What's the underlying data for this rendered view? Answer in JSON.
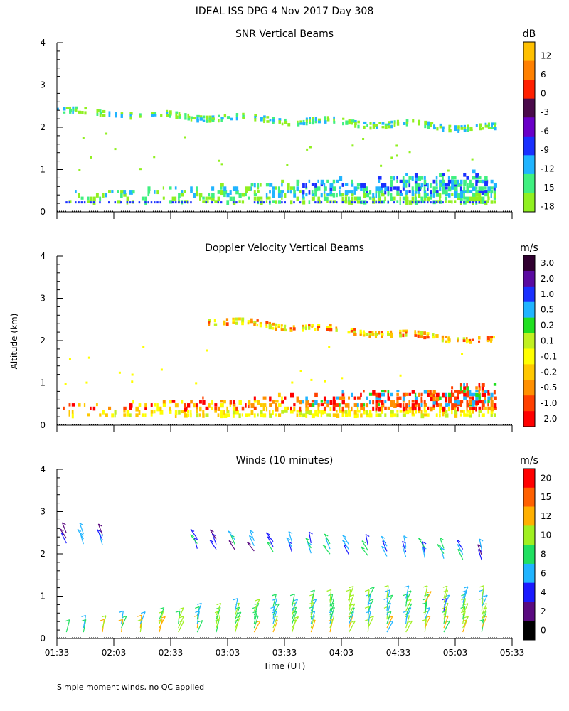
{
  "figure_title": "IDEAL ISS DPG   4 Nov 2017 Day 308",
  "y_axis_label": "Altitude (km)",
  "x_axis_label": "Time (UT)",
  "footnote": "Simple moment winds, no QC applied",
  "chart_data": [
    {
      "type": "heatmap",
      "title": "SNR Vertical Beams",
      "xlabel": "Time (UT)",
      "ylabel": "Altitude (km)",
      "x_ticks": [
        "01:33",
        "02:03",
        "02:33",
        "03:03",
        "03:33",
        "04:03",
        "04:33",
        "05:03",
        "05:33"
      ],
      "y_ticks": [
        "0",
        "1",
        "2",
        "3",
        "4"
      ],
      "xlim_minutes_after_0133": [
        0,
        240
      ],
      "ylim_km": [
        0,
        4
      ],
      "colorbar_unit": "dB",
      "colorbar_labels": [
        "12",
        "6",
        "0",
        "-3",
        "-6",
        "-9",
        "-12",
        "-15",
        "-18"
      ],
      "colorbar_colors": [
        "#ffc000",
        "#ff8000",
        "#ff2000",
        "#4a0a4a",
        "#6a00c8",
        "#1a30ff",
        "#20b4ff",
        "#40f080",
        "#90f020"
      ],
      "features": [
        {
          "name": "low-level layer",
          "alt_km": [
            0.2,
            0.9
          ],
          "time_min": [
            3,
            231
          ],
          "snr_db": [
            -18,
            -9
          ]
        },
        {
          "name": "elevated layer",
          "alt_km_start": 2.4,
          "alt_km_end": 2.0,
          "time_min": [
            0,
            231
          ],
          "snr_db": [
            -18,
            -15
          ]
        }
      ]
    },
    {
      "type": "heatmap",
      "title": "Doppler Velocity Vertical Beams",
      "xlabel": "Time (UT)",
      "ylabel": "Altitude (km)",
      "x_ticks": [
        "01:33",
        "02:03",
        "02:33",
        "03:03",
        "03:33",
        "04:03",
        "04:33",
        "05:03",
        "05:33"
      ],
      "y_ticks": [
        "0",
        "1",
        "2",
        "3",
        "4"
      ],
      "xlim_minutes_after_0133": [
        0,
        240
      ],
      "ylim_km": [
        0,
        4
      ],
      "colorbar_unit": "m/s",
      "colorbar_labels": [
        "3.0",
        "2.0",
        "1.0",
        "0.5",
        "0.2",
        "0.1",
        "-0.1",
        "-0.2",
        "-0.5",
        "-1.0",
        "-2.0"
      ],
      "colorbar_colors": [
        "#300030",
        "#5a0aa0",
        "#1a30ff",
        "#20b4ff",
        "#20e020",
        "#c0f020",
        "#ffff00",
        "#ffc800",
        "#ff9000",
        "#ff4000",
        "#ff0000"
      ],
      "features": [
        {
          "name": "low-level layer",
          "alt_km": [
            0.2,
            0.9
          ],
          "time_min": [
            3,
            231
          ],
          "velocity_ms": [
            -2.0,
            0.5
          ]
        },
        {
          "name": "elevated layer",
          "alt_km_start": 2.5,
          "alt_km_end": 2.0,
          "time_min": [
            78,
            231
          ],
          "velocity_ms": [
            -0.5,
            0.1
          ]
        }
      ]
    },
    {
      "type": "wind_barbs",
      "title": "Winds (10 minutes)",
      "xlabel": "Time (UT)",
      "ylabel": "Altitude (km)",
      "x_ticks": [
        "01:33",
        "02:03",
        "02:33",
        "03:03",
        "03:33",
        "04:03",
        "04:33",
        "05:03",
        "05:33"
      ],
      "y_ticks": [
        "0",
        "1",
        "2",
        "3",
        "4"
      ],
      "xlim_minutes_after_0133": [
        0,
        240
      ],
      "ylim_km": [
        0,
        4
      ],
      "colorbar_unit": "m/s",
      "colorbar_labels": [
        "20",
        "15",
        "12",
        "10",
        "8",
        "6",
        "4",
        "2",
        "0"
      ],
      "colorbar_colors": [
        "#ff0000",
        "#ff6000",
        "#ffb000",
        "#a0f020",
        "#20e060",
        "#20b4ff",
        "#1a1aff",
        "#5a0a80",
        "#000000"
      ],
      "profile_times_min": [
        5,
        14,
        24,
        34,
        44,
        54,
        64,
        74,
        84,
        94,
        104,
        114,
        124,
        134,
        144,
        154,
        164,
        174,
        184,
        194,
        204,
        214,
        224
      ]
    }
  ]
}
